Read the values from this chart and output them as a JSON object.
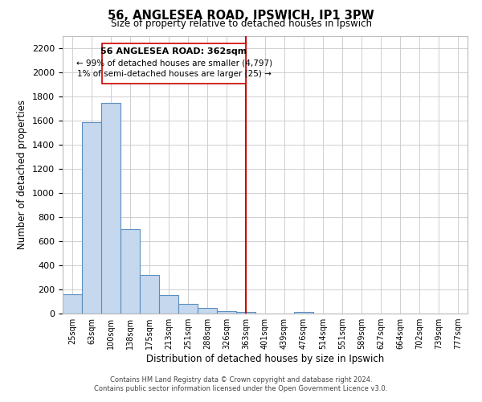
{
  "title": "56, ANGLESEA ROAD, IPSWICH, IP1 3PW",
  "subtitle": "Size of property relative to detached houses in Ipswich",
  "xlabel": "Distribution of detached houses by size in Ipswich",
  "ylabel": "Number of detached properties",
  "footnote1": "Contains HM Land Registry data © Crown copyright and database right 2024.",
  "footnote2": "Contains public sector information licensed under the Open Government Licence v3.0.",
  "bar_labels": [
    "25sqm",
    "63sqm",
    "100sqm",
    "138sqm",
    "175sqm",
    "213sqm",
    "251sqm",
    "288sqm",
    "326sqm",
    "363sqm",
    "401sqm",
    "439sqm",
    "476sqm",
    "514sqm",
    "551sqm",
    "589sqm",
    "627sqm",
    "664sqm",
    "702sqm",
    "739sqm",
    "777sqm"
  ],
  "bar_values": [
    160,
    1590,
    1750,
    700,
    320,
    155,
    80,
    45,
    20,
    15,
    0,
    0,
    15,
    0,
    0,
    0,
    0,
    0,
    0,
    0,
    0
  ],
  "bar_color": "#c5d8ee",
  "bar_edge_color": "#5a8fc0",
  "vline_color": "#cc0000",
  "vline_x": 9,
  "annotation_title": "56 ANGLESEA ROAD: 362sqm",
  "annotation_line1": "← 99% of detached houses are smaller (4,797)",
  "annotation_line2": "1% of semi-detached houses are larger (25) →",
  "ylim": [
    0,
    2300
  ],
  "yticks": [
    0,
    200,
    400,
    600,
    800,
    1000,
    1200,
    1400,
    1600,
    1800,
    2000,
    2200
  ],
  "background_color": "#ffffff",
  "grid_color": "#c8c8c8"
}
